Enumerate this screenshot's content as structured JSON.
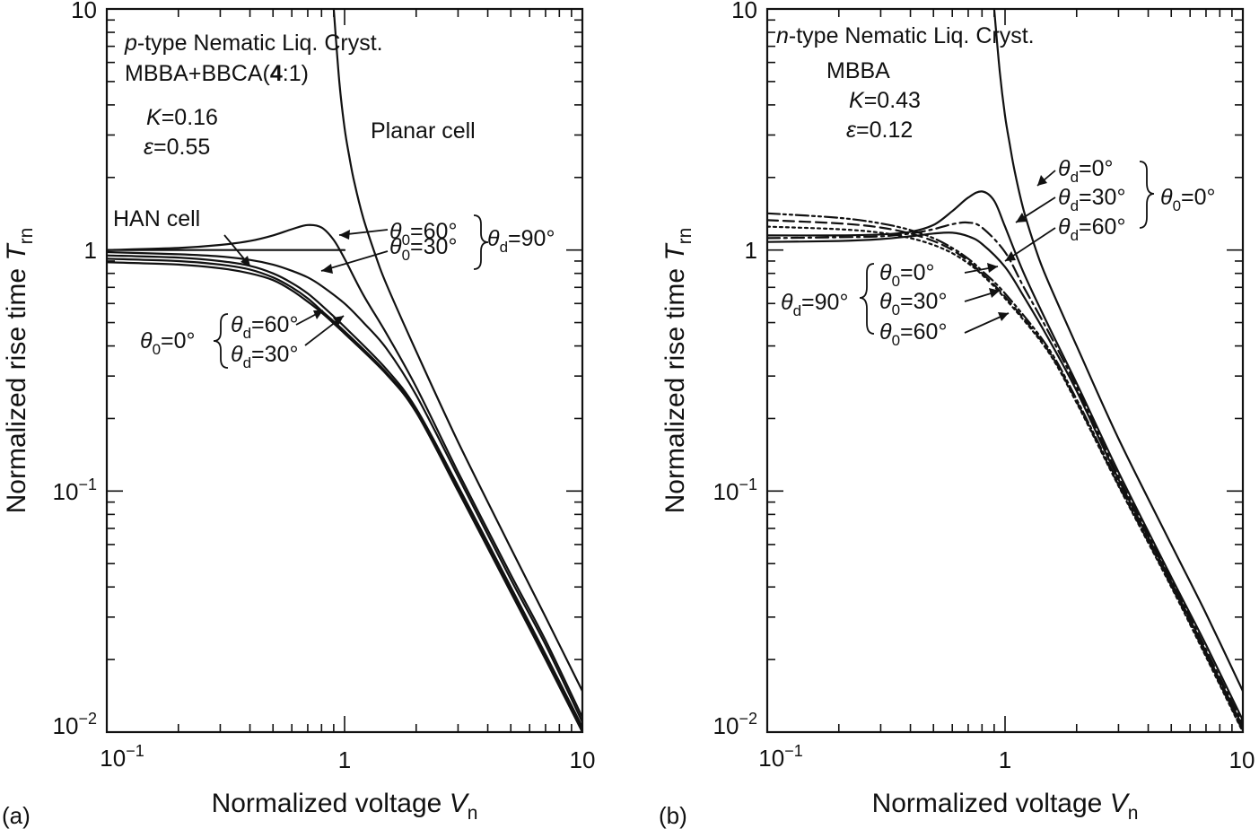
{
  "chart_data": [
    {
      "type": "line",
      "panel_label": "(a)",
      "xlabel": "Normalized voltage",
      "xlabel_var": "V",
      "xlabel_sub": "n",
      "ylabel": "Normalized rise time",
      "ylabel_var": "T",
      "ylabel_sub": "rn",
      "xscale": "log",
      "yscale": "log",
      "xlim": [
        0.1,
        10
      ],
      "ylim": [
        0.01,
        10
      ],
      "xticks": [
        {
          "base": "10",
          "exp": "−1"
        },
        {
          "base": "1",
          "exp": ""
        },
        {
          "base": "10",
          "exp": ""
        }
      ],
      "yticks": [
        {
          "base": "10",
          "exp": "−2"
        },
        {
          "base": "10",
          "exp": "−1"
        },
        {
          "base": "1",
          "exp": ""
        },
        {
          "base": "10",
          "exp": ""
        }
      ],
      "annotations": {
        "type_line_italic": "p",
        "type_line_rest": "-type Nematic Liq. Cryst.",
        "material": "MBBA+BBCA(",
        "material_bold": "4",
        "material_end": ":1)",
        "k_var": "K",
        "k_val": "=0.16",
        "eps_var": "ε",
        "eps_val": "=0.55",
        "planar": "Planar cell",
        "han": "HAN cell",
        "t0_60": "=60°",
        "t0_30": "=30°",
        "td_90": "=90°",
        "t0_0": "=0°",
        "td_60": "=60°",
        "td_30": "=30°"
      },
      "series": [
        {
          "label": "Planar cell",
          "style": "solid",
          "x": [
            0.9,
            0.95,
            1.0,
            1.05,
            1.1,
            1.2,
            1.35,
            1.5,
            2,
            3,
            5,
            7,
            10
          ],
          "y": [
            10,
            5.0,
            3.2,
            2.4,
            1.9,
            1.35,
            0.95,
            0.72,
            0.38,
            0.16,
            0.058,
            0.03,
            0.0148
          ]
        },
        {
          "label": "θ0=60° θd=90°",
          "style": "solid",
          "x": [
            0.1,
            0.2,
            0.3,
            0.4,
            0.5,
            0.6,
            0.7,
            0.8,
            0.9,
            1.0,
            1.2,
            1.5,
            2,
            3,
            5,
            7,
            10
          ],
          "y": [
            1.0,
            1.02,
            1.05,
            1.09,
            1.15,
            1.22,
            1.27,
            1.24,
            1.1,
            0.92,
            0.65,
            0.45,
            0.27,
            0.12,
            0.045,
            0.024,
            0.0115
          ]
        },
        {
          "label": "θ0=30° θd=90°",
          "style": "solid",
          "x": [
            0.1,
            0.2,
            0.3,
            0.4,
            0.5,
            0.6,
            0.7,
            0.8,
            1.0,
            1.2,
            1.5,
            2,
            3,
            5,
            7,
            10
          ],
          "y": [
            0.98,
            0.96,
            0.94,
            0.91,
            0.87,
            0.82,
            0.77,
            0.71,
            0.6,
            0.5,
            0.39,
            0.25,
            0.115,
            0.043,
            0.023,
            0.011
          ]
        },
        {
          "label": "HAN cell (θd=90°)",
          "style": "solid",
          "x": [
            0.1,
            0.2,
            0.3,
            0.4,
            0.5,
            0.6,
            0.7,
            0.8,
            1.0,
            1.5,
            2,
            3,
            5,
            7,
            10
          ],
          "y": [
            0.95,
            0.93,
            0.9,
            0.86,
            0.8,
            0.73,
            0.66,
            0.59,
            0.48,
            0.32,
            0.22,
            0.105,
            0.04,
            0.021,
            0.0105
          ]
        },
        {
          "label": "θ0=0° θd=60°",
          "style": "solid",
          "x": [
            0.1,
            0.2,
            0.3,
            0.4,
            0.5,
            0.6,
            0.7,
            0.8,
            1.0,
            1.5,
            2,
            3,
            5,
            7,
            10
          ],
          "y": [
            0.92,
            0.9,
            0.87,
            0.83,
            0.77,
            0.7,
            0.63,
            0.56,
            0.46,
            0.31,
            0.215,
            0.102,
            0.039,
            0.0205,
            0.0102
          ]
        },
        {
          "label": "θ0=0° θd=30°",
          "style": "solid",
          "x": [
            0.1,
            0.2,
            0.3,
            0.4,
            0.5,
            0.6,
            0.7,
            0.8,
            1.0,
            1.5,
            2,
            3,
            5,
            7,
            10
          ],
          "y": [
            0.89,
            0.87,
            0.84,
            0.8,
            0.75,
            0.68,
            0.61,
            0.55,
            0.45,
            0.305,
            0.212,
            0.1,
            0.038,
            0.02,
            0.01
          ]
        },
        {
          "label": "reference T=1",
          "style": "thin",
          "x": [
            0.1,
            1.0
          ],
          "y": [
            1.0,
            1.0
          ]
        }
      ]
    },
    {
      "type": "line",
      "panel_label": "(b)",
      "xlabel": "Normalized voltage",
      "xlabel_var": "V",
      "xlabel_sub": "n",
      "ylabel": "Normalized rise time",
      "ylabel_var": "T",
      "ylabel_sub": "rn",
      "xscale": "log",
      "yscale": "log",
      "xlim": [
        0.1,
        10
      ],
      "ylim": [
        0.01,
        10
      ],
      "xticks": [
        {
          "base": "10",
          "exp": "−1"
        },
        {
          "base": "1",
          "exp": ""
        },
        {
          "base": "10",
          "exp": ""
        }
      ],
      "yticks": [
        {
          "base": "10",
          "exp": "−2"
        },
        {
          "base": "10",
          "exp": "−1"
        },
        {
          "base": "1",
          "exp": ""
        },
        {
          "base": "10",
          "exp": ""
        }
      ],
      "annotations": {
        "type_line_italic": "n",
        "type_line_rest": "-type Nematic Liq. Cryst.",
        "material": "MBBA",
        "k_var": "K",
        "k_val": "=0.43",
        "eps_var": "ε",
        "eps_val": "=0.12",
        "td_0": "=0°",
        "td_30": "=30°",
        "td_60": "=60°",
        "t0_0_right": "=0°",
        "td_90": "=90°",
        "t0_0": "=0°",
        "t0_30": "=30°",
        "t0_60": "=60°"
      },
      "series": [
        {
          "label": "Planar cell",
          "style": "solid",
          "x": [
            0.9,
            0.95,
            1.0,
            1.05,
            1.1,
            1.2,
            1.35,
            1.5,
            2,
            3,
            5,
            7,
            10
          ],
          "y": [
            10,
            5.5,
            3.6,
            2.7,
            2.1,
            1.45,
            1.0,
            0.76,
            0.4,
            0.165,
            0.06,
            0.031,
            0.0148
          ]
        },
        {
          "label": "θd=0° θ0=0°",
          "style": "solid",
          "x": [
            0.1,
            0.2,
            0.3,
            0.4,
            0.5,
            0.6,
            0.7,
            0.8,
            0.9,
            1.0,
            1.2,
            1.5,
            2,
            3,
            5,
            7,
            10
          ],
          "y": [
            1.15,
            1.15,
            1.16,
            1.19,
            1.27,
            1.45,
            1.65,
            1.75,
            1.6,
            1.25,
            0.8,
            0.5,
            0.28,
            0.12,
            0.044,
            0.023,
            0.0112
          ]
        },
        {
          "label": "θd=30° θ0=0°",
          "style": "dashdot",
          "x": [
            0.1,
            0.2,
            0.3,
            0.4,
            0.5,
            0.6,
            0.7,
            0.8,
            1.0,
            1.2,
            1.5,
            2,
            3,
            5,
            7,
            10
          ],
          "y": [
            1.12,
            1.13,
            1.14,
            1.17,
            1.22,
            1.28,
            1.3,
            1.24,
            0.98,
            0.7,
            0.47,
            0.27,
            0.115,
            0.043,
            0.022,
            0.0108
          ]
        },
        {
          "label": "θd=60° θ0=0°",
          "style": "solid",
          "x": [
            0.1,
            0.2,
            0.3,
            0.4,
            0.5,
            0.6,
            0.7,
            0.8,
            1.0,
            1.2,
            1.5,
            2,
            3,
            5,
            7,
            10
          ],
          "y": [
            1.08,
            1.09,
            1.11,
            1.14,
            1.17,
            1.18,
            1.14,
            1.06,
            0.85,
            0.64,
            0.44,
            0.26,
            0.112,
            0.042,
            0.0215,
            0.0105
          ]
        },
        {
          "label": "θd=90° θ0=0°",
          "style": "dashdotdot",
          "x": [
            0.1,
            0.2,
            0.3,
            0.4,
            0.5,
            0.6,
            0.7,
            0.8,
            1.0,
            1.5,
            2,
            3,
            5,
            7,
            10
          ],
          "y": [
            1.42,
            1.36,
            1.29,
            1.21,
            1.12,
            1.02,
            0.92,
            0.82,
            0.66,
            0.4,
            0.24,
            0.108,
            0.041,
            0.021,
            0.0102
          ]
        },
        {
          "label": "θd=90° θ0=30°",
          "style": "dashed",
          "x": [
            0.1,
            0.2,
            0.3,
            0.4,
            0.5,
            0.6,
            0.7,
            0.8,
            1.0,
            1.5,
            2,
            3,
            5,
            7,
            10
          ],
          "y": [
            1.33,
            1.29,
            1.24,
            1.17,
            1.09,
            1.0,
            0.9,
            0.8,
            0.64,
            0.39,
            0.235,
            0.106,
            0.0405,
            0.0208,
            0.0101
          ]
        },
        {
          "label": "θd=90° θ0=60°",
          "style": "dotted",
          "x": [
            0.1,
            0.2,
            0.3,
            0.4,
            0.5,
            0.6,
            0.7,
            0.8,
            1.0,
            1.5,
            2,
            3,
            5,
            7,
            10
          ],
          "y": [
            1.25,
            1.22,
            1.18,
            1.12,
            1.05,
            0.97,
            0.88,
            0.79,
            0.63,
            0.385,
            0.232,
            0.105,
            0.04,
            0.0205,
            0.01
          ]
        }
      ]
    }
  ]
}
